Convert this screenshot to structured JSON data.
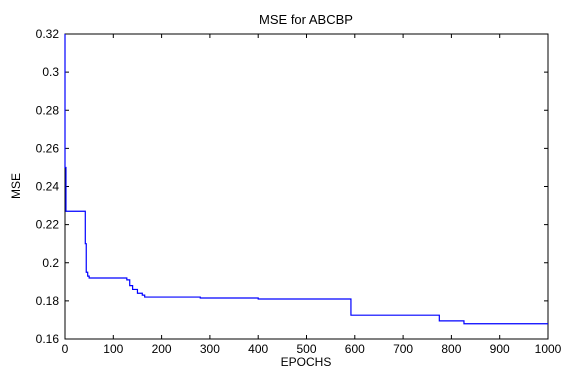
{
  "chart_data": {
    "type": "line",
    "title": "MSE for ABCBP",
    "xlabel": "EPOCHS",
    "ylabel": "MSE",
    "xlim": [
      0,
      1000
    ],
    "ylim": [
      0.16,
      0.32
    ],
    "x_ticks": [
      0,
      100,
      200,
      300,
      400,
      500,
      600,
      700,
      800,
      900,
      1000
    ],
    "x_tick_labels": [
      "0",
      "100",
      "200",
      "300",
      "400",
      "500",
      "600",
      "700",
      "800",
      "900",
      "1000"
    ],
    "y_ticks": [
      0.16,
      0.18,
      0.2,
      0.22,
      0.24,
      0.26,
      0.28,
      0.3,
      0.32
    ],
    "y_tick_labels": [
      "0.16",
      "0.18",
      "0.2",
      "0.22",
      "0.24",
      "0.26",
      "0.28",
      "0.3",
      "0.32"
    ],
    "grid": false,
    "line_color": "#0000ff",
    "step": true,
    "series": [
      {
        "x": [
          0,
          0,
          2,
          40,
          42,
          44,
          47,
          50,
          100,
          128,
          134,
          140,
          150,
          160,
          165,
          170,
          270,
          280,
          400,
          590,
          592,
          770,
          775,
          820,
          826,
          1000
        ],
        "values": [
          0.32,
          0.25,
          0.227,
          0.227,
          0.21,
          0.195,
          0.193,
          0.192,
          0.192,
          0.191,
          0.188,
          0.186,
          0.184,
          0.183,
          0.182,
          0.182,
          0.182,
          0.1815,
          0.181,
          0.181,
          0.1725,
          0.1725,
          0.1695,
          0.1695,
          0.168,
          0.168
        ]
      }
    ]
  }
}
